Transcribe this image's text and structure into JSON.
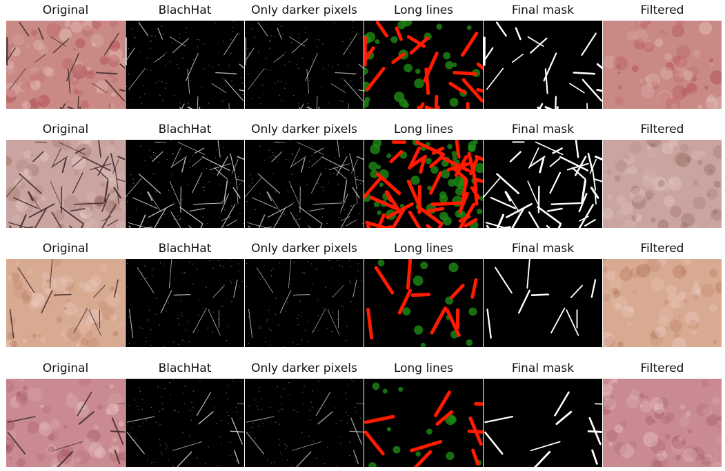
{
  "figure": {
    "columns": [
      {
        "key": "original",
        "title": "Original"
      },
      {
        "key": "blackhat",
        "title": "BlachHat"
      },
      {
        "key": "darker",
        "title": "Only darker pixels"
      },
      {
        "key": "longlines",
        "title": "Long lines"
      },
      {
        "key": "finalmask",
        "title": "Final mask"
      },
      {
        "key": "filtered",
        "title": "Filtered"
      }
    ],
    "rows": [
      {
        "name": "sample-1",
        "skin_base": "#c98a86",
        "skin_accent": "#a8323f",
        "hair_density": "medium"
      },
      {
        "name": "sample-2",
        "skin_base": "#c9a4a0",
        "skin_accent": "#8a5a50",
        "hair_density": "high"
      },
      {
        "name": "sample-3",
        "skin_base": "#d9aa92",
        "skin_accent": "#a8684a",
        "hair_density": "low"
      },
      {
        "name": "sample-4",
        "skin_base": "#c98a92",
        "skin_accent": "#9a4a58",
        "hair_density": "low"
      }
    ],
    "colors": {
      "mask_line": "#ffffff",
      "long_line": "#ff1a00",
      "blob": "#1e8a14",
      "background": "#000000"
    }
  }
}
